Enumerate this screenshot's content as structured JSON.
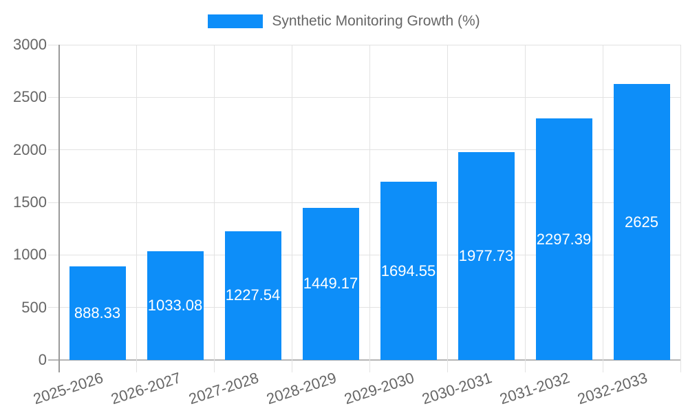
{
  "chart_data": {
    "type": "bar",
    "title": "Synthetic Monitoring Growth (%)",
    "legend": {
      "label": "Synthetic Monitoring Growth (%)",
      "position": "top"
    },
    "categories": [
      "2025-2026",
      "2026-2027",
      "2027-2028",
      "2028-2029",
      "2029-2030",
      "2030-2031",
      "2031-2032",
      "2032-2033"
    ],
    "values": [
      888.33,
      1033.08,
      1227.54,
      1449.17,
      1694.55,
      1977.73,
      2297.39,
      2625
    ],
    "value_labels": [
      "888.33",
      "1033.08",
      "1227.54",
      "1449.17",
      "1694.55",
      "1977.73",
      "2297.39",
      "2625"
    ],
    "xlabel": "",
    "ylabel": "",
    "ylim": [
      0,
      3000
    ],
    "y_ticks": [
      0,
      500,
      1000,
      1500,
      2000,
      2500,
      3000
    ],
    "grid": true,
    "colors": {
      "bar": "#0d8ef9",
      "bar_label": "#ffffff",
      "grid": "#e2e2e2",
      "zero_line": "#b5b5b5",
      "y_axis_line": "#9a9a9a",
      "tick_text": "#666666",
      "legend_text": "#666666"
    }
  }
}
